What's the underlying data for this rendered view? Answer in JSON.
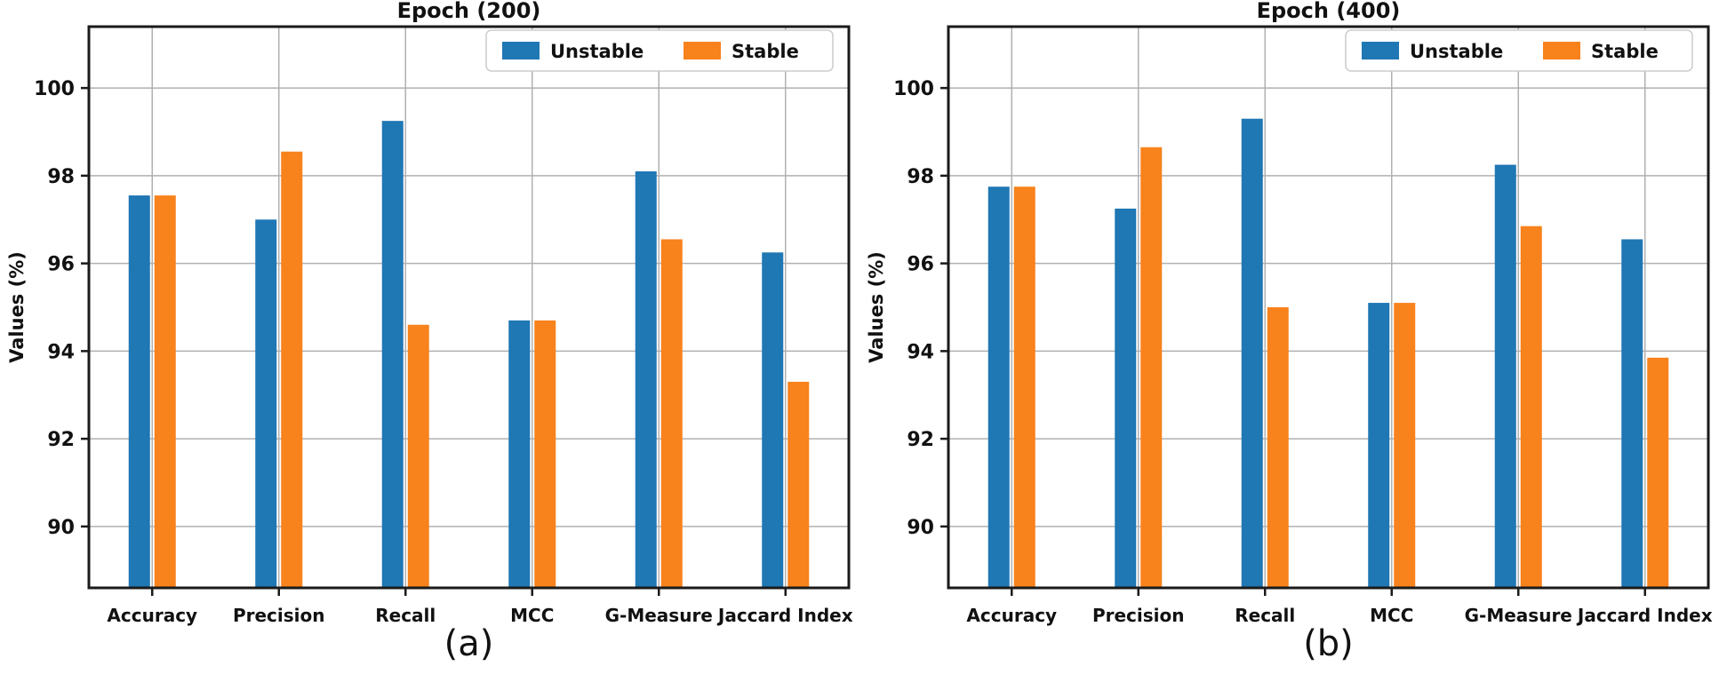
{
  "figure": {
    "panels": [
      {
        "title": "Epoch (200)",
        "caption": "(a)"
      },
      {
        "title": "Epoch (400)",
        "caption": "(b)"
      }
    ]
  },
  "colors": {
    "unstable": "#1f77b4",
    "stable": "#f8821c",
    "grid": "#b0b0b0",
    "frame": "#1a1a1a",
    "text": "#111111",
    "legend_border": "#cccccc",
    "background": "#ffffff"
  },
  "chart_data": [
    {
      "type": "bar",
      "title": "Epoch (200)",
      "caption": "(a)",
      "categories": [
        "Accuracy",
        "Precision",
        "Recall",
        "MCC",
        "G-Measure",
        "Jaccard Index"
      ],
      "series": [
        {
          "name": "Unstable",
          "color": "#1f77b4",
          "values": [
            97.55,
            97.0,
            99.25,
            94.7,
            98.1,
            96.25
          ]
        },
        {
          "name": "Stable",
          "color": "#f8821c",
          "values": [
            97.55,
            98.55,
            94.6,
            94.7,
            96.55,
            93.3
          ]
        }
      ],
      "xlabel": "",
      "ylabel": "Values (%)",
      "ylim": [
        88.6,
        101.4
      ],
      "yticks": [
        90,
        92,
        94,
        96,
        98,
        100
      ],
      "grid": true,
      "legend_position": "upper right"
    },
    {
      "type": "bar",
      "title": "Epoch (400)",
      "caption": "(b)",
      "categories": [
        "Accuracy",
        "Precision",
        "Recall",
        "MCC",
        "G-Measure",
        "Jaccard Index"
      ],
      "series": [
        {
          "name": "Unstable",
          "color": "#1f77b4",
          "values": [
            97.75,
            97.25,
            99.3,
            95.1,
            98.25,
            96.55
          ]
        },
        {
          "name": "Stable",
          "color": "#f8821c",
          "values": [
            97.75,
            98.65,
            95.0,
            95.1,
            96.85,
            93.85
          ]
        }
      ],
      "xlabel": "",
      "ylabel": "Values (%)",
      "ylim": [
        88.6,
        101.4
      ],
      "yticks": [
        90,
        92,
        94,
        96,
        98,
        100
      ],
      "grid": true,
      "legend_position": "upper right"
    }
  ]
}
